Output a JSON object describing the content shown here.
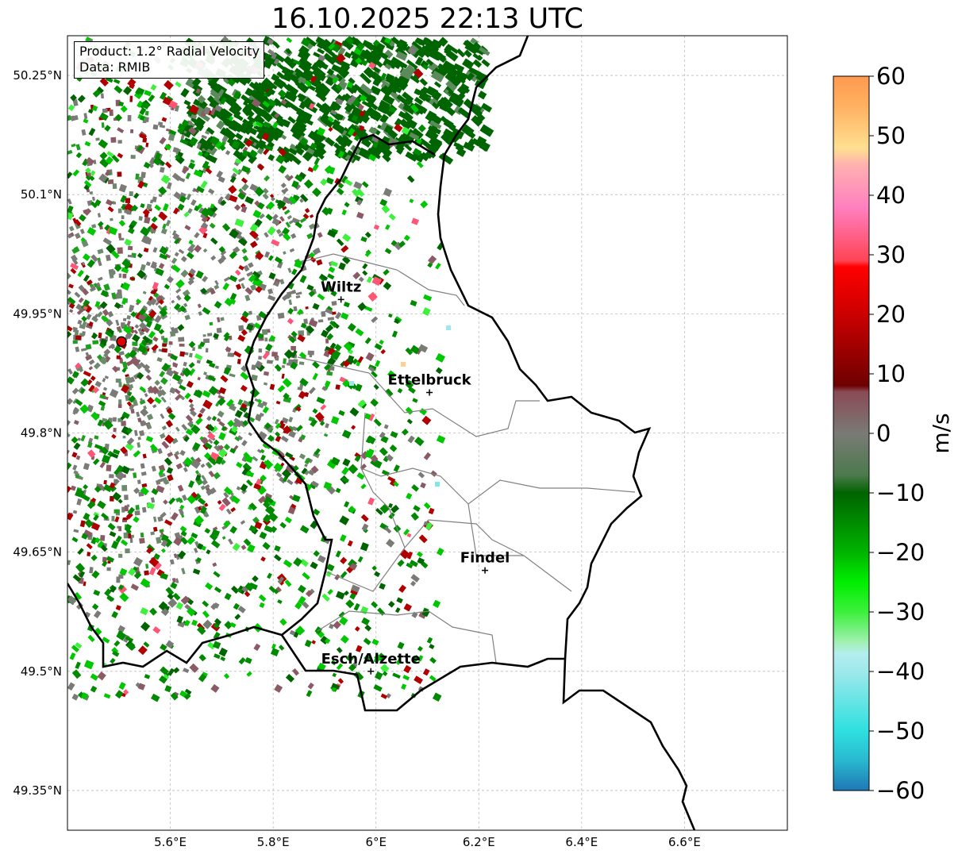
{
  "title": "16.10.2025 22:13 UTC",
  "info": {
    "product": "Product: 1.2° Radial Velocity",
    "source": "Data: RMIB"
  },
  "map": {
    "lon_range": [
      5.4,
      6.8
    ],
    "lat_range": [
      49.3,
      50.3
    ],
    "lon_ticks": [
      {
        "value": 5.6,
        "label": "5.6°E"
      },
      {
        "value": 5.8,
        "label": "5.8°E"
      },
      {
        "value": 6.0,
        "label": "6°E"
      },
      {
        "value": 6.2,
        "label": "6.2°E"
      },
      {
        "value": 6.4,
        "label": "6.4°E"
      },
      {
        "value": 6.6,
        "label": "6.6°E"
      }
    ],
    "lat_ticks": [
      {
        "value": 50.25,
        "label": "50.25°N"
      },
      {
        "value": 50.1,
        "label": "50.1°N"
      },
      {
        "value": 49.95,
        "label": "49.95°N"
      },
      {
        "value": 49.8,
        "label": "49.8°N"
      },
      {
        "value": 49.65,
        "label": "49.65°N"
      },
      {
        "value": 49.5,
        "label": "49.5°N"
      },
      {
        "value": 49.35,
        "label": "49.35°N"
      }
    ],
    "radar_site": {
      "lon": 5.505,
      "lat": 49.915,
      "color": "#e00000"
    },
    "cities": [
      {
        "name": "Wiltz",
        "lon": 5.932,
        "lat": 49.968
      },
      {
        "name": "Ettelbruck",
        "lon": 6.104,
        "lat": 49.851
      },
      {
        "name": "Findel",
        "lon": 6.212,
        "lat": 49.627
      },
      {
        "name": "Esch/Alzette",
        "lon": 5.99,
        "lat": 49.5
      }
    ],
    "border_color": "#000000",
    "canton_color": "#808080"
  },
  "colorbar": {
    "label": "m/s",
    "vmin": -60,
    "vmax": 60,
    "ticks": [
      {
        "value": 60,
        "label": "60"
      },
      {
        "value": 50,
        "label": "50"
      },
      {
        "value": 40,
        "label": "40"
      },
      {
        "value": 30,
        "label": "30"
      },
      {
        "value": 20,
        "label": "20"
      },
      {
        "value": 10,
        "label": "10"
      },
      {
        "value": 0,
        "label": "0"
      },
      {
        "value": -10,
        "label": "−10"
      },
      {
        "value": -20,
        "label": "−20"
      },
      {
        "value": -30,
        "label": "−30"
      },
      {
        "value": -40,
        "label": "−40"
      },
      {
        "value": -50,
        "label": "−50"
      },
      {
        "value": -60,
        "label": "−60"
      }
    ],
    "stops": [
      {
        "value": -60,
        "color": "#1f77b4"
      },
      {
        "value": -55,
        "color": "#29b8d0"
      },
      {
        "value": -50,
        "color": "#2ee0e0"
      },
      {
        "value": -40,
        "color": "#9ee8ea"
      },
      {
        "value": -37,
        "color": "#b4eeee"
      },
      {
        "value": -35,
        "color": "#a0f0b0"
      },
      {
        "value": -30,
        "color": "#3cf03c"
      },
      {
        "value": -25,
        "color": "#00ee00"
      },
      {
        "value": -20,
        "color": "#00b400"
      },
      {
        "value": -10,
        "color": "#006400"
      },
      {
        "value": -7,
        "color": "#4c7a4c"
      },
      {
        "value": 0,
        "color": "#7a7a76"
      },
      {
        "value": 7,
        "color": "#8a4a55"
      },
      {
        "value": 8,
        "color": "#6e0000"
      },
      {
        "value": 20,
        "color": "#cc0000"
      },
      {
        "value": 28,
        "color": "#ff0000"
      },
      {
        "value": 29,
        "color": "#ff4455"
      },
      {
        "value": 38,
        "color": "#ff80c0"
      },
      {
        "value": 45,
        "color": "#ffb0b0"
      },
      {
        "value": 48,
        "color": "#ffe090"
      },
      {
        "value": 55,
        "color": "#ffb060"
      },
      {
        "value": 60,
        "color": "#ff9a50"
      }
    ]
  }
}
